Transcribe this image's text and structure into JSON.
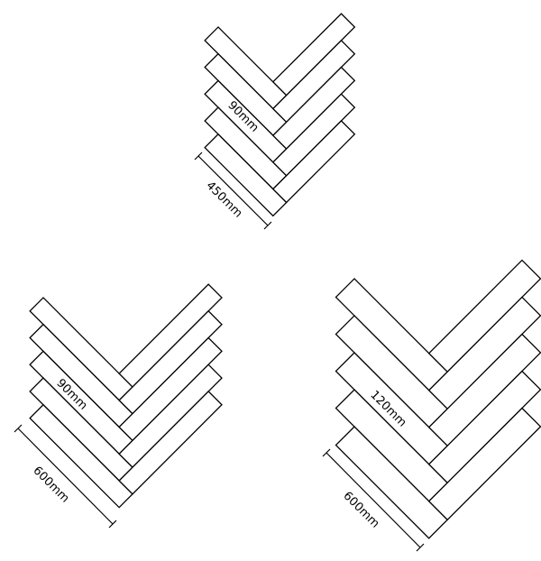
{
  "diagrams": [
    {
      "width_label": "90mm",
      "length_label": "450mm",
      "board_count": 5
    },
    {
      "width_label": "90mm",
      "length_label": "600mm",
      "board_count": 5
    },
    {
      "width_label": "120mm",
      "length_label": "600mm",
      "board_count": 5
    }
  ],
  "colors": {
    "stroke": "#000000",
    "fill": "#ffffff"
  }
}
